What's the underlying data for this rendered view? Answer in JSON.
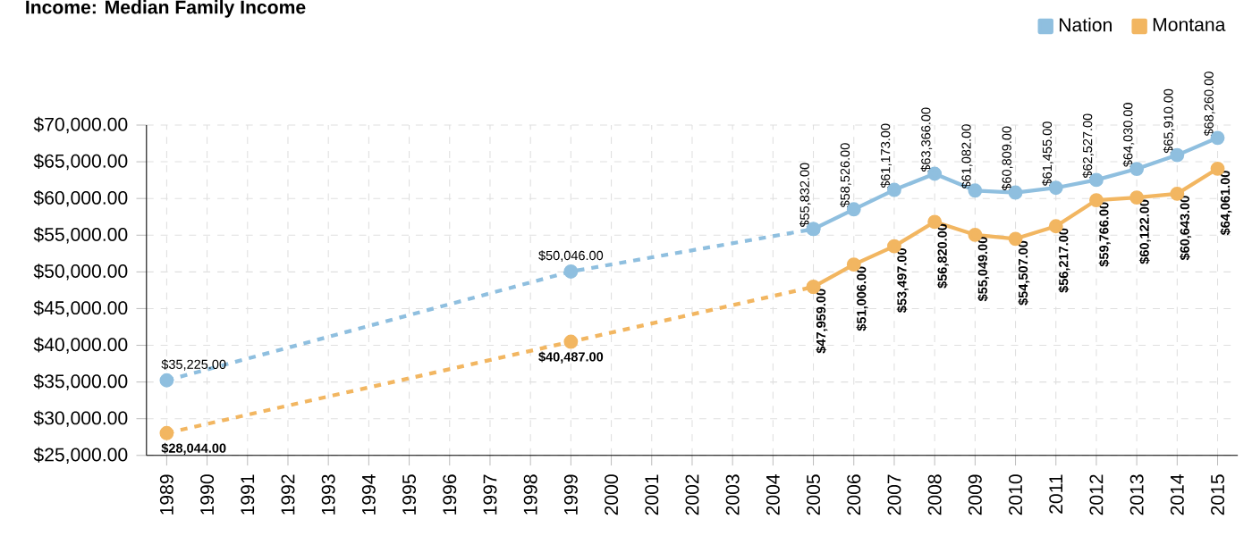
{
  "chart_data": {
    "type": "line",
    "title": "Income: Median Family Income",
    "xlim": [
      1988.5,
      2015.5
    ],
    "xticks": [
      1989,
      1990,
      1991,
      1992,
      1993,
      1994,
      1995,
      1996,
      1997,
      1998,
      1999,
      2000,
      2001,
      2002,
      2003,
      2004,
      2005,
      2006,
      2007,
      2008,
      2009,
      2010,
      2011,
      2012,
      2013,
      2014,
      2015
    ],
    "ylim": [
      25000,
      70000
    ],
    "yticks": [
      {
        "value": 25000,
        "label": "$25,000.00"
      },
      {
        "value": 30000,
        "label": "$30,000.00"
      },
      {
        "value": 35000,
        "label": "$35,000.00"
      },
      {
        "value": 40000,
        "label": "$40,000.00"
      },
      {
        "value": 45000,
        "label": "$45,000.00"
      },
      {
        "value": 50000,
        "label": "$50,000.00"
      },
      {
        "value": 55000,
        "label": "$55,000.00"
      },
      {
        "value": 60000,
        "label": "$60,000.00"
      },
      {
        "value": 65000,
        "label": "$65,000.00"
      },
      {
        "value": 70000,
        "label": "$70,000.00"
      }
    ],
    "grid": true,
    "legend": "top right",
    "marker": "circle",
    "series": [
      {
        "color": "#8fbfdf",
        "line_style": "dashed",
        "x": [
          1989,
          1999,
          2005
        ],
        "values": [
          35225,
          50046,
          55832
        ],
        "value_labels": [
          "$35,225.00",
          "$50,046.00",
          null
        ]
      },
      {
        "color": "#f2b661",
        "line_style": "dashed",
        "x": [
          1989,
          1999,
          2005
        ],
        "values": [
          28044,
          40487,
          47959
        ],
        "value_labels": [
          "$28,044.00",
          "$40,487.00",
          null
        ]
      },
      {
        "name": "Nation",
        "color": "#8fbfdf",
        "line_style": "solid",
        "x": [
          2005,
          2006,
          2007,
          2008,
          2009,
          2010,
          2011,
          2012,
          2013,
          2014,
          2015
        ],
        "values": [
          55832,
          58526,
          61173,
          63366,
          61082,
          60809,
          61455,
          62527,
          64030,
          65910,
          68260
        ],
        "value_labels": [
          "$55,832.00",
          "$58,526.00",
          "$61,173.00",
          "$63,366.00",
          "$61,082.00",
          "$60,809.00",
          "$61,455.00",
          "$62,527.00",
          "$64,030.00",
          "$65,910.00",
          "$68,260.00"
        ]
      },
      {
        "name": "Montana",
        "color": "#f2b661",
        "line_style": "solid",
        "x": [
          2005,
          2006,
          2007,
          2008,
          2009,
          2010,
          2011,
          2012,
          2013,
          2014,
          2015
        ],
        "values": [
          47959,
          51006,
          53497,
          56820,
          55049,
          54507,
          56217,
          59766,
          60122,
          60643,
          64061
        ],
        "value_labels": [
          "$47,959.00",
          "$51,006.00",
          "$53,497.00",
          "$56,820.00",
          "$55,049.00",
          "$54,507.00",
          "$56,217.00",
          "$59,766.00",
          "$60,122.00",
          "$60,643.00",
          "$64,061.00"
        ]
      }
    ]
  }
}
